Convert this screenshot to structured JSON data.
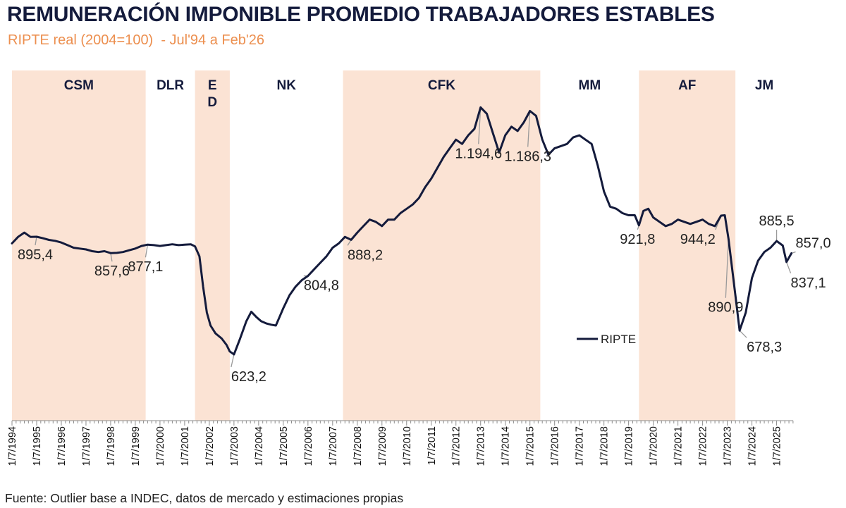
{
  "title": "REMUNERACIÓN IMPONIBLE PROMEDIO TRABAJADORES ESTABLES",
  "subtitle": "RIPTE real (2004=100)  - Jul'94 a Feb'26",
  "source": "Fuente: Outlier base a INDEC, datos de mercado y estimaciones propias",
  "colors": {
    "line": "#141b3c",
    "band": "#fbe3d4",
    "title": "#141b3c",
    "subtitle": "#ec8f4f",
    "annotation": "#222222",
    "leader": "#9a9a9a"
  },
  "chart_data": {
    "type": "line",
    "title": "REMUNERACIÓN IMPONIBLE PROMEDIO TRABAJADORES ESTABLES",
    "subtitle": "RIPTE real (2004=100)  - Jul'94 a Feb'26",
    "xlabel": "",
    "ylabel": "",
    "xlim": [
      1994.5,
      2026.17
    ],
    "ylim": [
      470,
      1280
    ],
    "grid": false,
    "legend": {
      "position": "center-right",
      "entries": [
        "RIPTE"
      ]
    },
    "x_ticks": [
      "1/7/1994",
      "1/7/1995",
      "1/7/1996",
      "1/7/1997",
      "1/7/1998",
      "1/7/1999",
      "1/7/2000",
      "1/7/2001",
      "1/7/2002",
      "1/7/2003",
      "1/7/2004",
      "1/7/2005",
      "1/7/2006",
      "1/7/2007",
      "1/7/2008",
      "1/7/2009",
      "1/7/2010",
      "1/7/2011",
      "1/7/2012",
      "1/7/2013",
      "1/7/2014",
      "1/7/2015",
      "1/7/2016",
      "1/7/2017",
      "1/7/2018",
      "1/7/2019",
      "1/7/2020",
      "1/7/2021",
      "1/7/2022",
      "1/7/2023",
      "1/7/2024",
      "1/7/2025"
    ],
    "periods": [
      {
        "label": "CSM",
        "start": 1994.5,
        "end": 1999.92,
        "shaded": true
      },
      {
        "label": "DLR",
        "start": 1999.92,
        "end": 2001.92,
        "shaded": false
      },
      {
        "label": "E\nD",
        "start": 2001.92,
        "end": 2003.33,
        "shaded": true
      },
      {
        "label": "NK",
        "start": 2003.33,
        "end": 2007.92,
        "shaded": false
      },
      {
        "label": "CFK",
        "start": 2007.92,
        "end": 2015.92,
        "shaded": true
      },
      {
        "label": "MM",
        "start": 2015.92,
        "end": 2019.92,
        "shaded": false
      },
      {
        "label": "AF",
        "start": 2019.92,
        "end": 2023.83,
        "shaded": true
      },
      {
        "label": "JM",
        "start": 2023.83,
        "end": 2026.17,
        "shaded": false
      }
    ],
    "series": [
      {
        "name": "RIPTE",
        "points": [
          [
            1994.5,
            880
          ],
          [
            1994.75,
            895
          ],
          [
            1995.0,
            905
          ],
          [
            1995.25,
            895
          ],
          [
            1995.5,
            895.4
          ],
          [
            1995.75,
            892
          ],
          [
            1996.0,
            888
          ],
          [
            1996.25,
            886
          ],
          [
            1996.5,
            882
          ],
          [
            1996.75,
            876
          ],
          [
            1997.0,
            870
          ],
          [
            1997.25,
            868
          ],
          [
            1997.5,
            866
          ],
          [
            1997.75,
            862
          ],
          [
            1998.0,
            860
          ],
          [
            1998.25,
            862
          ],
          [
            1998.5,
            857.6
          ],
          [
            1998.75,
            858
          ],
          [
            1999.0,
            860
          ],
          [
            1999.25,
            864
          ],
          [
            1999.5,
            868
          ],
          [
            1999.75,
            874
          ],
          [
            2000.0,
            877.1
          ],
          [
            2000.25,
            876
          ],
          [
            2000.5,
            874
          ],
          [
            2000.75,
            876
          ],
          [
            2001.0,
            878
          ],
          [
            2001.25,
            876
          ],
          [
            2001.5,
            877
          ],
          [
            2001.75,
            878
          ],
          [
            2001.92,
            873
          ],
          [
            2002.1,
            850
          ],
          [
            2002.25,
            780
          ],
          [
            2002.4,
            720
          ],
          [
            2002.55,
            690
          ],
          [
            2002.75,
            672
          ],
          [
            2003.0,
            660
          ],
          [
            2003.2,
            645
          ],
          [
            2003.33,
            630
          ],
          [
            2003.5,
            623.2
          ],
          [
            2003.75,
            660
          ],
          [
            2004.0,
            700
          ],
          [
            2004.2,
            722
          ],
          [
            2004.4,
            710
          ],
          [
            2004.6,
            700
          ],
          [
            2004.8,
            695
          ],
          [
            2005.0,
            692
          ],
          [
            2005.2,
            690
          ],
          [
            2005.35,
            710
          ],
          [
            2005.5,
            730
          ],
          [
            2005.75,
            760
          ],
          [
            2006.0,
            780
          ],
          [
            2006.25,
            795
          ],
          [
            2006.5,
            804.8
          ],
          [
            2006.75,
            820
          ],
          [
            2007.0,
            835
          ],
          [
            2007.25,
            850
          ],
          [
            2007.5,
            870
          ],
          [
            2007.75,
            880
          ],
          [
            2008.0,
            895
          ],
          [
            2008.25,
            888.2
          ],
          [
            2008.5,
            905
          ],
          [
            2008.75,
            920
          ],
          [
            2009.0,
            935
          ],
          [
            2009.25,
            930
          ],
          [
            2009.5,
            920
          ],
          [
            2009.75,
            935
          ],
          [
            2010.0,
            935
          ],
          [
            2010.25,
            950
          ],
          [
            2010.5,
            960
          ],
          [
            2010.75,
            970
          ],
          [
            2011.0,
            985
          ],
          [
            2011.25,
            1010
          ],
          [
            2011.5,
            1030
          ],
          [
            2011.75,
            1055
          ],
          [
            2012.0,
            1080
          ],
          [
            2012.25,
            1100
          ],
          [
            2012.5,
            1120
          ],
          [
            2012.75,
            1110
          ],
          [
            2013.0,
            1130
          ],
          [
            2013.25,
            1145
          ],
          [
            2013.5,
            1194.6
          ],
          [
            2013.75,
            1180
          ],
          [
            2014.0,
            1135
          ],
          [
            2014.25,
            1090
          ],
          [
            2014.5,
            1130
          ],
          [
            2014.75,
            1150
          ],
          [
            2015.0,
            1140
          ],
          [
            2015.25,
            1160
          ],
          [
            2015.5,
            1186.3
          ],
          [
            2015.75,
            1175
          ],
          [
            2016.0,
            1120
          ],
          [
            2016.25,
            1085
          ],
          [
            2016.5,
            1100
          ],
          [
            2016.75,
            1105
          ],
          [
            2017.0,
            1110
          ],
          [
            2017.25,
            1125
          ],
          [
            2017.5,
            1130
          ],
          [
            2017.75,
            1120
          ],
          [
            2018.0,
            1110
          ],
          [
            2018.25,
            1060
          ],
          [
            2018.5,
            1000
          ],
          [
            2018.75,
            965
          ],
          [
            2019.0,
            960
          ],
          [
            2019.25,
            950
          ],
          [
            2019.5,
            945
          ],
          [
            2019.75,
            945
          ],
          [
            2019.92,
            921.8
          ],
          [
            2020.1,
            955
          ],
          [
            2020.3,
            960
          ],
          [
            2020.5,
            940
          ],
          [
            2020.75,
            930
          ],
          [
            2021.0,
            920
          ],
          [
            2021.25,
            925
          ],
          [
            2021.5,
            935
          ],
          [
            2021.75,
            930
          ],
          [
            2022.0,
            925
          ],
          [
            2022.25,
            930
          ],
          [
            2022.5,
            935
          ],
          [
            2022.75,
            925
          ],
          [
            2023.0,
            920
          ],
          [
            2023.25,
            944.2
          ],
          [
            2023.4,
            945
          ],
          [
            2023.55,
            890.9
          ],
          [
            2023.83,
            760
          ],
          [
            2024.0,
            678.3
          ],
          [
            2024.25,
            720
          ],
          [
            2024.5,
            800
          ],
          [
            2024.75,
            840
          ],
          [
            2025.0,
            860
          ],
          [
            2025.25,
            870
          ],
          [
            2025.5,
            885.5
          ],
          [
            2025.75,
            875
          ],
          [
            2025.9,
            837.1
          ],
          [
            2026.1,
            857.0
          ]
        ]
      }
    ],
    "annotations": [
      {
        "label": "895,4",
        "x": 1995.5,
        "y": 895.4
      },
      {
        "label": "857,6",
        "x": 1998.5,
        "y": 857.6
      },
      {
        "label": "877,1",
        "x": 2000.0,
        "y": 877.1
      },
      {
        "label": "623,2",
        "x": 2003.5,
        "y": 623.2
      },
      {
        "label": "804,8",
        "x": 2006.5,
        "y": 804.8
      },
      {
        "label": "888,2",
        "x": 2008.25,
        "y": 888.2
      },
      {
        "label": "1.194,6",
        "x": 2013.5,
        "y": 1194.6
      },
      {
        "label": "1.186,3",
        "x": 2015.5,
        "y": 1186.3
      },
      {
        "label": "921,8",
        "x": 2019.92,
        "y": 921.8
      },
      {
        "label": "944,2",
        "x": 2023.25,
        "y": 944.2
      },
      {
        "label": "890,9",
        "x": 2023.55,
        "y": 890.9
      },
      {
        "label": "678,3",
        "x": 2024.0,
        "y": 678.3
      },
      {
        "label": "885,5",
        "x": 2025.5,
        "y": 885.5
      },
      {
        "label": "837,1",
        "x": 2025.9,
        "y": 837.1
      },
      {
        "label": "857,0",
        "x": 2026.1,
        "y": 857.0
      }
    ]
  }
}
